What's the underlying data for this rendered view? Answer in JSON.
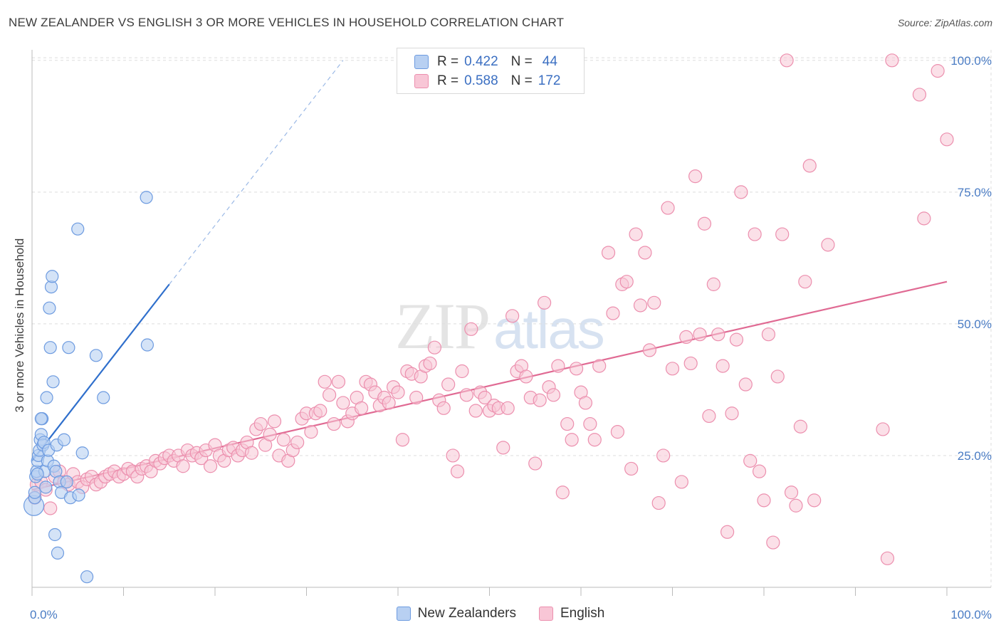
{
  "header": {
    "title": "NEW ZEALANDER VS ENGLISH 3 OR MORE VEHICLES IN HOUSEHOLD CORRELATION CHART",
    "source": "Source: ZipAtlas.com"
  },
  "watermark": {
    "zip": "ZIP",
    "atlas": "atlas"
  },
  "colors": {
    "blue_fill": "#b8d0f2",
    "blue_stroke": "#6d9be0",
    "blue_line": "#2f6fcc",
    "pink_fill": "#f8c6d6",
    "pink_stroke": "#ec8fae",
    "pink_line": "#e06a93",
    "tick_text": "#4a7cc4",
    "grid": "#dddddd"
  },
  "legend": {
    "rows": [
      {
        "r_label": "R =",
        "r_value": "0.422",
        "n_label": "N =",
        "n_value": "44"
      },
      {
        "r_label": "R =",
        "r_value": "0.588",
        "n_label": "N =",
        "n_value": "172"
      }
    ]
  },
  "chart_data": {
    "type": "scatter",
    "title": "NEW ZEALANDER VS ENGLISH 3 OR MORE VEHICLES IN HOUSEHOLD CORRELATION CHART",
    "xlabel": "",
    "ylabel": "3 or more Vehicles in Household",
    "xlim": [
      0,
      100
    ],
    "ylim": [
      0,
      102
    ],
    "x_tick_labels": [
      "0.0%",
      "100.0%"
    ],
    "y_ticks": [
      25,
      50,
      75,
      100
    ],
    "y_tick_labels": [
      "25.0%",
      "50.0%",
      "75.0%",
      "100.0%"
    ],
    "grid": true,
    "legend_placement": "bottom-center",
    "series": [
      {
        "name": "New Zealanders",
        "r": 0.422,
        "n": 44,
        "trend": {
          "x0": 0,
          "y0": 24,
          "x1": 15,
          "y1": 57.5,
          "dashed_to_x": 34,
          "dashed_to_y": 100
        },
        "points": [
          [
            0.2,
            15.5
          ],
          [
            0.3,
            17
          ],
          [
            0.4,
            21
          ],
          [
            0.5,
            22
          ],
          [
            0.6,
            24
          ],
          [
            0.7,
            25
          ],
          [
            0.8,
            26
          ],
          [
            0.9,
            28
          ],
          [
            1.0,
            29
          ],
          [
            1.1,
            32
          ],
          [
            1.2,
            27
          ],
          [
            1.3,
            27.5
          ],
          [
            1.4,
            22
          ],
          [
            1.5,
            19
          ],
          [
            1.6,
            36
          ],
          [
            1.7,
            24
          ],
          [
            1.8,
            26
          ],
          [
            1.9,
            53
          ],
          [
            2.0,
            45.5
          ],
          [
            2.1,
            57
          ],
          [
            2.2,
            59
          ],
          [
            2.3,
            39
          ],
          [
            2.4,
            23
          ],
          [
            2.5,
            10
          ],
          [
            2.6,
            22
          ],
          [
            2.7,
            27
          ],
          [
            2.8,
            6.5
          ],
          [
            3.0,
            20
          ],
          [
            3.2,
            18
          ],
          [
            3.5,
            28
          ],
          [
            3.8,
            20
          ],
          [
            4.0,
            45.5
          ],
          [
            4.2,
            17
          ],
          [
            5.0,
            68
          ],
          [
            5.1,
            17.5
          ],
          [
            5.5,
            25.5
          ],
          [
            6.0,
            2
          ],
          [
            7.0,
            44
          ],
          [
            7.8,
            36
          ],
          [
            12.5,
            74
          ],
          [
            12.6,
            46
          ],
          [
            0.3,
            18
          ],
          [
            0.6,
            21.5
          ],
          [
            1.0,
            32
          ]
        ]
      },
      {
        "name": "English",
        "r": 0.588,
        "n": 172,
        "trend": {
          "x0": 0,
          "y0": 18.5,
          "x1": 100,
          "y1": 58
        },
        "points": [
          [
            0.3,
            17
          ],
          [
            0.5,
            19.5
          ],
          [
            1,
            20
          ],
          [
            1.5,
            18.5
          ],
          [
            2,
            15
          ],
          [
            2.5,
            21
          ],
          [
            3,
            22
          ],
          [
            3.5,
            20
          ],
          [
            4,
            19.5
          ],
          [
            4.5,
            21.5
          ],
          [
            5,
            20
          ],
          [
            5.5,
            19
          ],
          [
            6,
            20.5
          ],
          [
            6.5,
            21
          ],
          [
            7,
            19.5
          ],
          [
            7.5,
            20
          ],
          [
            8,
            21
          ],
          [
            8.5,
            21.5
          ],
          [
            9,
            22
          ],
          [
            9.5,
            21
          ],
          [
            10,
            21.5
          ],
          [
            10.5,
            22.5
          ],
          [
            11,
            22
          ],
          [
            11.5,
            21
          ],
          [
            12,
            22.5
          ],
          [
            12.5,
            23
          ],
          [
            13,
            22
          ],
          [
            13.5,
            24
          ],
          [
            14,
            23.5
          ],
          [
            14.5,
            24.5
          ],
          [
            15,
            25
          ],
          [
            15.5,
            24
          ],
          [
            16,
            25
          ],
          [
            16.5,
            23
          ],
          [
            17,
            26
          ],
          [
            17.5,
            25
          ],
          [
            18,
            25.5
          ],
          [
            18.5,
            24.5
          ],
          [
            19,
            26
          ],
          [
            19.5,
            23
          ],
          [
            20,
            27
          ],
          [
            20.5,
            25
          ],
          [
            21,
            24
          ],
          [
            21.5,
            26
          ],
          [
            22,
            26.5
          ],
          [
            22.5,
            25
          ],
          [
            23,
            26
          ],
          [
            23.5,
            27.5
          ],
          [
            24,
            25.5
          ],
          [
            24.5,
            30
          ],
          [
            25,
            31
          ],
          [
            25.5,
            27
          ],
          [
            26,
            29
          ],
          [
            26.5,
            31.5
          ],
          [
            27,
            25
          ],
          [
            27.5,
            28
          ],
          [
            28,
            24
          ],
          [
            28.5,
            26
          ],
          [
            29,
            27.5
          ],
          [
            29.5,
            32
          ],
          [
            30,
            33
          ],
          [
            30.5,
            29.5
          ],
          [
            31,
            33
          ],
          [
            31.5,
            33.5
          ],
          [
            32,
            39
          ],
          [
            32.5,
            36.5
          ],
          [
            33,
            31
          ],
          [
            33.5,
            39
          ],
          [
            34,
            35
          ],
          [
            34.5,
            31.5
          ],
          [
            35,
            33
          ],
          [
            35.5,
            36
          ],
          [
            36,
            34
          ],
          [
            36.5,
            39
          ],
          [
            37,
            38.5
          ],
          [
            37.5,
            37
          ],
          [
            38,
            34.5
          ],
          [
            38.5,
            36
          ],
          [
            39,
            35
          ],
          [
            39.5,
            38
          ],
          [
            40,
            37
          ],
          [
            40.5,
            28
          ],
          [
            41,
            41
          ],
          [
            41.5,
            40.5
          ],
          [
            42,
            36
          ],
          [
            42.5,
            40
          ],
          [
            43,
            42
          ],
          [
            43.5,
            42.5
          ],
          [
            44,
            45.5
          ],
          [
            44.5,
            35.5
          ],
          [
            45,
            34
          ],
          [
            45.5,
            38.5
          ],
          [
            46,
            25
          ],
          [
            46.5,
            22
          ],
          [
            47,
            41
          ],
          [
            47.5,
            36.5
          ],
          [
            48,
            49
          ],
          [
            48.5,
            33.5
          ],
          [
            49,
            37
          ],
          [
            49.5,
            36
          ],
          [
            50,
            33.5
          ],
          [
            50.5,
            34.5
          ],
          [
            51,
            34
          ],
          [
            51.5,
            26.5
          ],
          [
            52,
            34
          ],
          [
            52.5,
            51.5
          ],
          [
            53,
            41
          ],
          [
            53.5,
            42
          ],
          [
            54,
            40
          ],
          [
            54.5,
            36
          ],
          [
            55,
            23.5
          ],
          [
            55.5,
            35.5
          ],
          [
            56,
            54
          ],
          [
            56.5,
            38
          ],
          [
            57,
            36.5
          ],
          [
            57.5,
            42
          ],
          [
            58,
            18
          ],
          [
            58.5,
            31
          ],
          [
            59,
            28
          ],
          [
            59.5,
            41.5
          ],
          [
            60,
            37
          ],
          [
            60.5,
            35
          ],
          [
            61,
            31
          ],
          [
            61.5,
            28
          ],
          [
            62,
            42
          ],
          [
            63,
            63.5
          ],
          [
            63.5,
            52
          ],
          [
            64,
            29.5
          ],
          [
            64.5,
            57.5
          ],
          [
            65,
            58
          ],
          [
            65.5,
            22.5
          ],
          [
            66,
            67
          ],
          [
            66.5,
            53.5
          ],
          [
            67,
            63.5
          ],
          [
            67.5,
            45
          ],
          [
            68,
            54
          ],
          [
            68.5,
            16
          ],
          [
            69,
            25
          ],
          [
            69.5,
            72
          ],
          [
            70,
            41.5
          ],
          [
            71,
            20
          ],
          [
            71.5,
            47.5
          ],
          [
            72,
            42.5
          ],
          [
            72.5,
            78
          ],
          [
            73,
            48
          ],
          [
            73.5,
            69
          ],
          [
            74,
            32.5
          ],
          [
            74.5,
            57.5
          ],
          [
            75,
            48
          ],
          [
            75.5,
            42
          ],
          [
            76,
            10.5
          ],
          [
            76.5,
            33
          ],
          [
            77,
            47
          ],
          [
            77.5,
            75
          ],
          [
            78,
            38.5
          ],
          [
            78.5,
            24
          ],
          [
            79,
            67
          ],
          [
            79.5,
            22
          ],
          [
            80,
            16.5
          ],
          [
            80.5,
            48
          ],
          [
            81,
            8.5
          ],
          [
            81.5,
            40
          ],
          [
            82,
            67
          ],
          [
            82.5,
            100
          ],
          [
            83,
            18
          ],
          [
            83.5,
            15.5
          ],
          [
            84,
            30.5
          ],
          [
            84.5,
            58
          ],
          [
            85,
            80
          ],
          [
            85.5,
            16.5
          ],
          [
            87,
            65
          ],
          [
            93,
            30
          ],
          [
            93.5,
            5.5
          ],
          [
            94,
            100
          ],
          [
            97,
            93.5
          ],
          [
            97.5,
            70
          ],
          [
            99,
            98
          ],
          [
            100,
            85
          ]
        ]
      }
    ]
  }
}
